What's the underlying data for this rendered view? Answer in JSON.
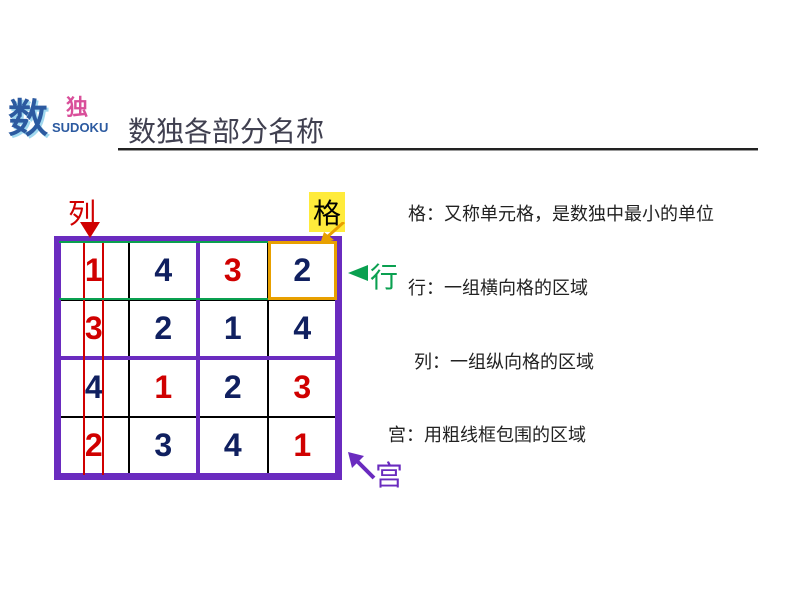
{
  "logo": {
    "big": "数",
    "small": "独",
    "en": "SUDOKU"
  },
  "title": "数独各部分名称",
  "grid": {
    "type": "table",
    "rows": 4,
    "cols": 4,
    "outer_w": 288,
    "outer_h": 244,
    "border_color_outer": "#6a2bbf",
    "values": [
      [
        "1",
        "4",
        "3",
        "2"
      ],
      [
        "3",
        "2",
        "1",
        "4"
      ],
      [
        "4",
        "1",
        "2",
        "3"
      ],
      [
        "2",
        "3",
        "4",
        "1"
      ]
    ],
    "value_colors": [
      [
        "#d00000",
        "#102060",
        "#d00000",
        "#102060"
      ],
      [
        "#d00000",
        "#102060",
        "#102060",
        "#102060"
      ],
      [
        "#102060",
        "#d00000",
        "#102060",
        "#d00000"
      ],
      [
        "#d00000",
        "#102060",
        "#102060",
        "#d00000"
      ]
    ],
    "cell_border_color": "#000000",
    "cell_fontsize": 32,
    "highlight_cell": {
      "row": 0,
      "col": 3,
      "color": "#e8a000"
    },
    "highlight_row": {
      "row": 0,
      "color": "#0aa050"
    },
    "highlight_col": {
      "col": 0,
      "color": "#d00000"
    },
    "box_rows": 2,
    "box_cols": 2,
    "box_border_color": "#6a2bbf"
  },
  "labels": {
    "lie": {
      "text": "列",
      "color": "#d00000"
    },
    "ge": {
      "text": "格",
      "color": "#000000",
      "bg": "#ffeb3b"
    },
    "hang": {
      "text": "行",
      "color": "#0aa050"
    },
    "gong": {
      "text": "宫",
      "color": "#6a2bbf"
    }
  },
  "descriptions": {
    "ge": "格：又称单元格，是数独中最小的单位",
    "hang": "行：一组横向格的区域",
    "lie": "列：一组纵向格的区域",
    "gong": "宫：用粗线框包围的区域"
  },
  "arrows": {
    "col": {
      "color": "#d00000",
      "dir": "down"
    },
    "ge": {
      "color": "#e8a000",
      "dir": "down-left"
    },
    "hang": {
      "color": "#0aa050",
      "dir": "left"
    },
    "gong": {
      "color": "#6a2bbf",
      "dir": "up-left"
    }
  }
}
